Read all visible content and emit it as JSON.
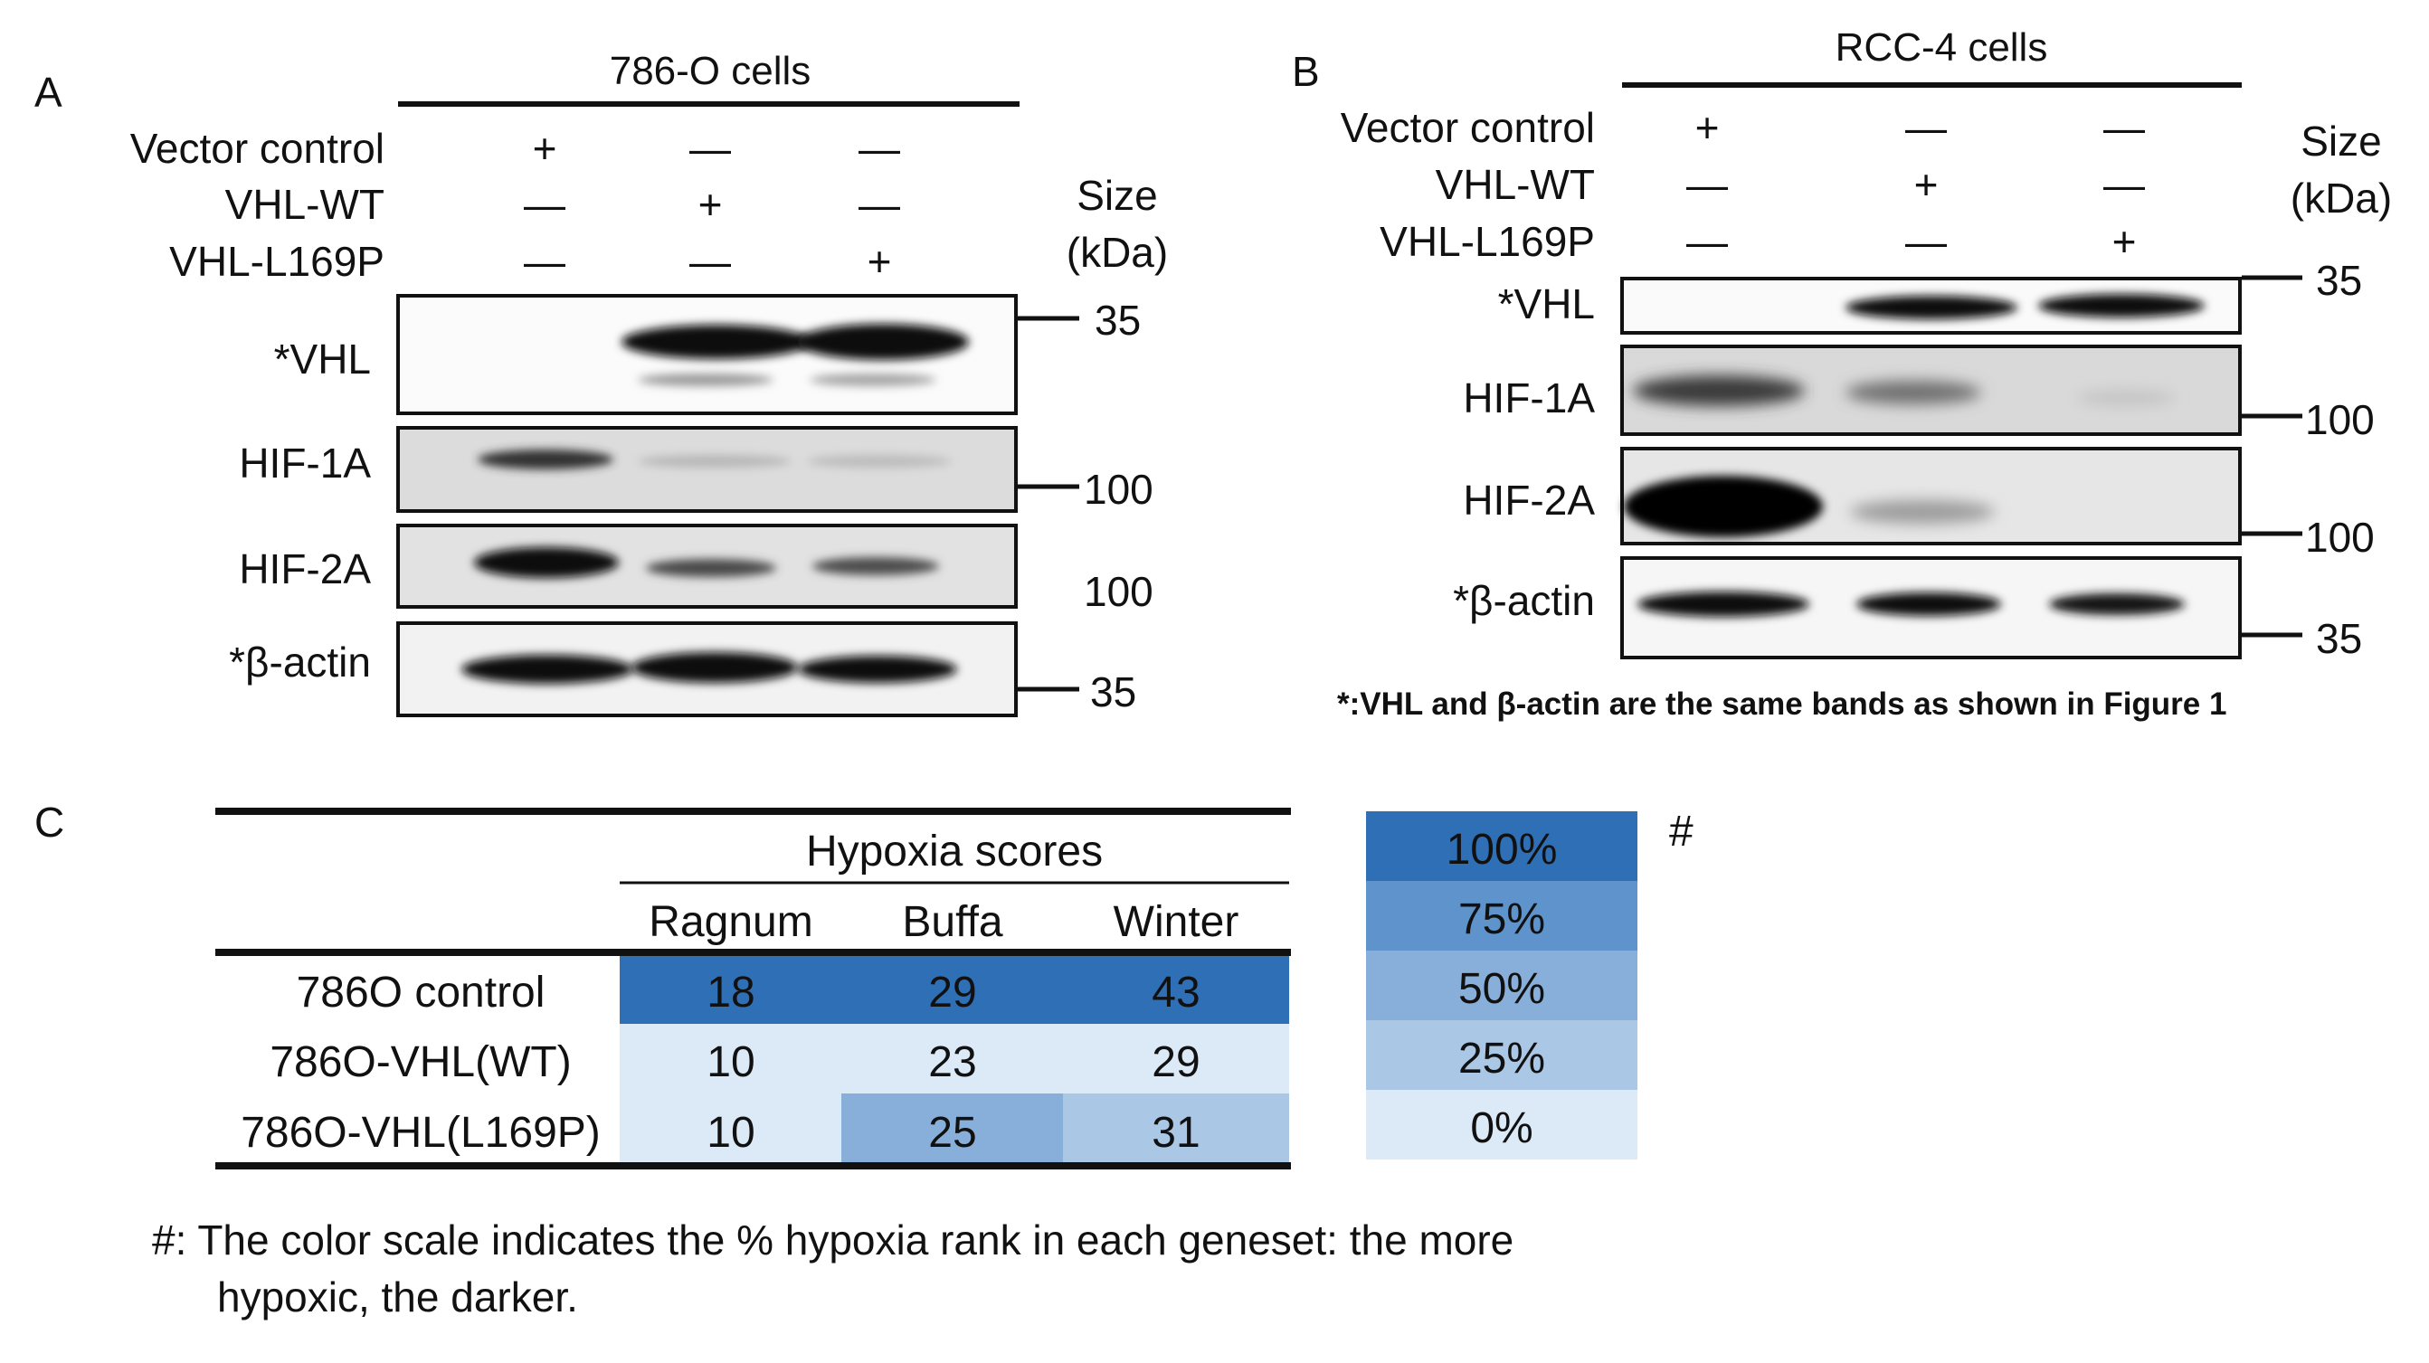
{
  "panel_a": {
    "letter": "A",
    "header": "786-O cells",
    "conditions": [
      "Vector control",
      "VHL-WT",
      "VHL-L169P"
    ],
    "signs": [
      [
        "+",
        "—",
        "—"
      ],
      [
        "—",
        "+",
        "—"
      ],
      [
        "—",
        "—",
        "+"
      ]
    ],
    "size_label": [
      "Size",
      "(kDa)"
    ],
    "blots": [
      {
        "label": "*VHL",
        "marker": "35"
      },
      {
        "label": "HIF-1A",
        "marker": "100"
      },
      {
        "label": "HIF-2A",
        "marker": "100"
      },
      {
        "label": "*β-actin",
        "marker": "35"
      }
    ]
  },
  "panel_b": {
    "letter": "B",
    "header": "RCC-4 cells",
    "conditions": [
      "Vector control",
      "VHL-WT",
      "VHL-L169P"
    ],
    "signs": [
      [
        "+",
        "—",
        "—"
      ],
      [
        "—",
        "+",
        "—"
      ],
      [
        "—",
        "—",
        "+"
      ]
    ],
    "size_label": [
      "Size",
      "(kDa)"
    ],
    "blots": [
      {
        "label": "*VHL",
        "marker": "35"
      },
      {
        "label": "HIF-1A",
        "marker": "100"
      },
      {
        "label": "HIF-2A",
        "marker": "100"
      },
      {
        "label": "*β-actin",
        "marker": "35"
      }
    ],
    "footnote": "*:VHL and β-actin are the same bands as shown in Figure 1"
  },
  "panel_c": {
    "letter": "C",
    "group_header": "Hypoxia scores",
    "columns": [
      "Ragnum",
      "Buffa",
      "Winter"
    ],
    "rows": [
      {
        "label": "786O control",
        "values": [
          "18",
          "29",
          "43"
        ],
        "ranks": [
          100,
          100,
          100
        ]
      },
      {
        "label": "786O-VHL(WT)",
        "values": [
          "10",
          "23",
          "29"
        ],
        "ranks": [
          0,
          0,
          0
        ]
      },
      {
        "label": "786O-VHL(L169P)",
        "values": [
          "10",
          "25",
          "31"
        ],
        "ranks": [
          0,
          50,
          25
        ]
      }
    ],
    "legend": [
      {
        "label": "100%",
        "color": "#2e6fb6"
      },
      {
        "label": "75%",
        "color": "#5e93cb"
      },
      {
        "label": "50%",
        "color": "#88afd9"
      },
      {
        "label": "25%",
        "color": "#abc7e6"
      },
      {
        "label": "0%",
        "color": "#dce9f6"
      }
    ],
    "legend_mark": "#",
    "note_line1": "#: The color scale indicates the % hypoxia rank in each geneset: the more",
    "note_line2": "hypoxic, the darker."
  }
}
